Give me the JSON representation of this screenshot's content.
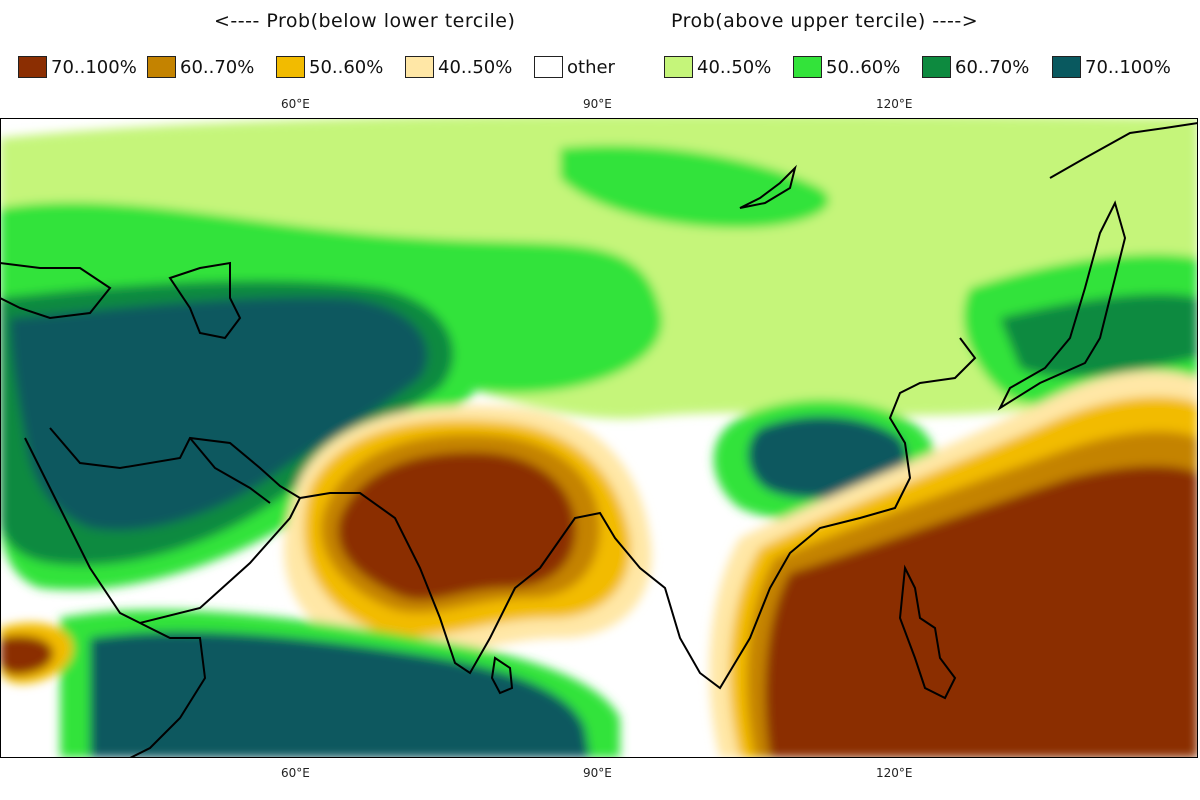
{
  "header": {
    "below": "<---- Prob(below lower tercile)",
    "above": "Prob(above upper tercile) ---->"
  },
  "legend": [
    {
      "label": "70..100%",
      "color": "#8b2e02"
    },
    {
      "label": "60..70%",
      "color": "#c48300"
    },
    {
      "label": "50..60%",
      "color": "#f2bb00"
    },
    {
      "label": "40..50%",
      "color": "#ffe7a6"
    },
    {
      "label": "other",
      "color": "#ffffff"
    },
    {
      "label": "40..50%",
      "color": "#c5f57a"
    },
    {
      "label": "50..60%",
      "color": "#33e33a"
    },
    {
      "label": "60..70%",
      "color": "#0d8a3f"
    },
    {
      "label": "70..100%",
      "color": "#09595f"
    }
  ],
  "axes": {
    "lon_top": [
      "60°E",
      "90°E",
      "120°E"
    ],
    "lon_bottom": [
      "60°E",
      "90°E",
      "120°E"
    ]
  }
}
